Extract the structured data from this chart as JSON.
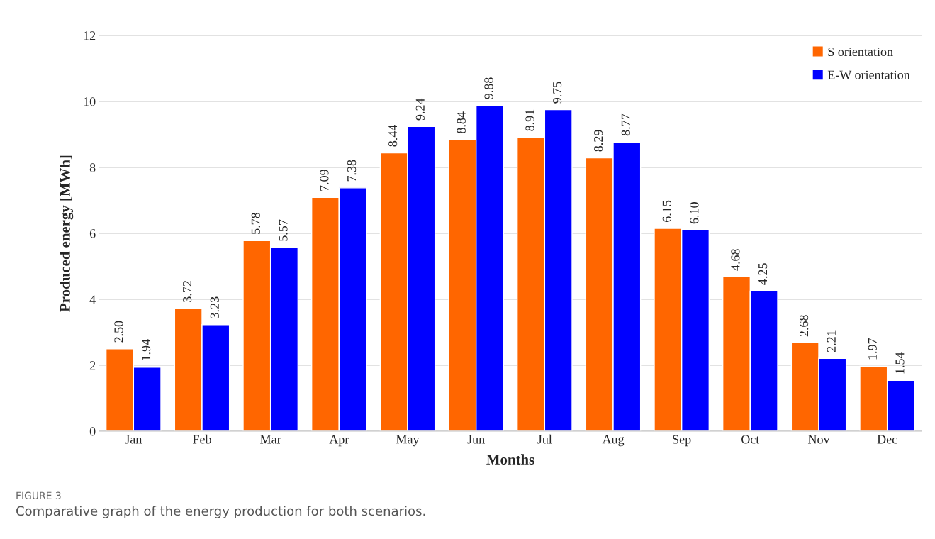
{
  "chart_data": {
    "type": "bar",
    "xlabel": "Months",
    "ylabel": "Produced energy [MWh]",
    "categories": [
      "Jan",
      "Feb",
      "Mar",
      "Apr",
      "May",
      "Jun",
      "Jul",
      "Aug",
      "Sep",
      "Oct",
      "Nov",
      "Dec"
    ],
    "series": [
      {
        "name": "S orientation",
        "color": "#ff6600",
        "values": [
          2.5,
          3.72,
          5.78,
          7.09,
          8.44,
          8.84,
          8.91,
          8.29,
          6.15,
          4.68,
          2.68,
          1.97
        ],
        "value_labels": [
          "2.50",
          "3.72",
          "5.78",
          "7.09",
          "8.44",
          "8.84",
          "8.91",
          "8.29",
          "6.15",
          "4.68",
          "2.68",
          "1.97"
        ]
      },
      {
        "name": "E-W orientation",
        "color": "#0000ff",
        "values": [
          1.94,
          3.23,
          5.57,
          7.38,
          9.24,
          9.88,
          9.75,
          8.77,
          6.1,
          4.25,
          2.21,
          1.54
        ],
        "value_labels": [
          "1.94",
          "3.23",
          "5.57",
          "7.38",
          "9.24",
          "9.88",
          "9.75",
          "8.77",
          "6.10",
          "4.25",
          "2.21",
          "1.54"
        ]
      }
    ],
    "ylim": [
      0,
      12
    ],
    "yticks": [
      0,
      2,
      4,
      6,
      8,
      10,
      12
    ],
    "grid": "y",
    "legend": "top right",
    "annotations": [
      "FIGURE 3",
      "Comparative graph of the energy production for both scenarios."
    ]
  }
}
